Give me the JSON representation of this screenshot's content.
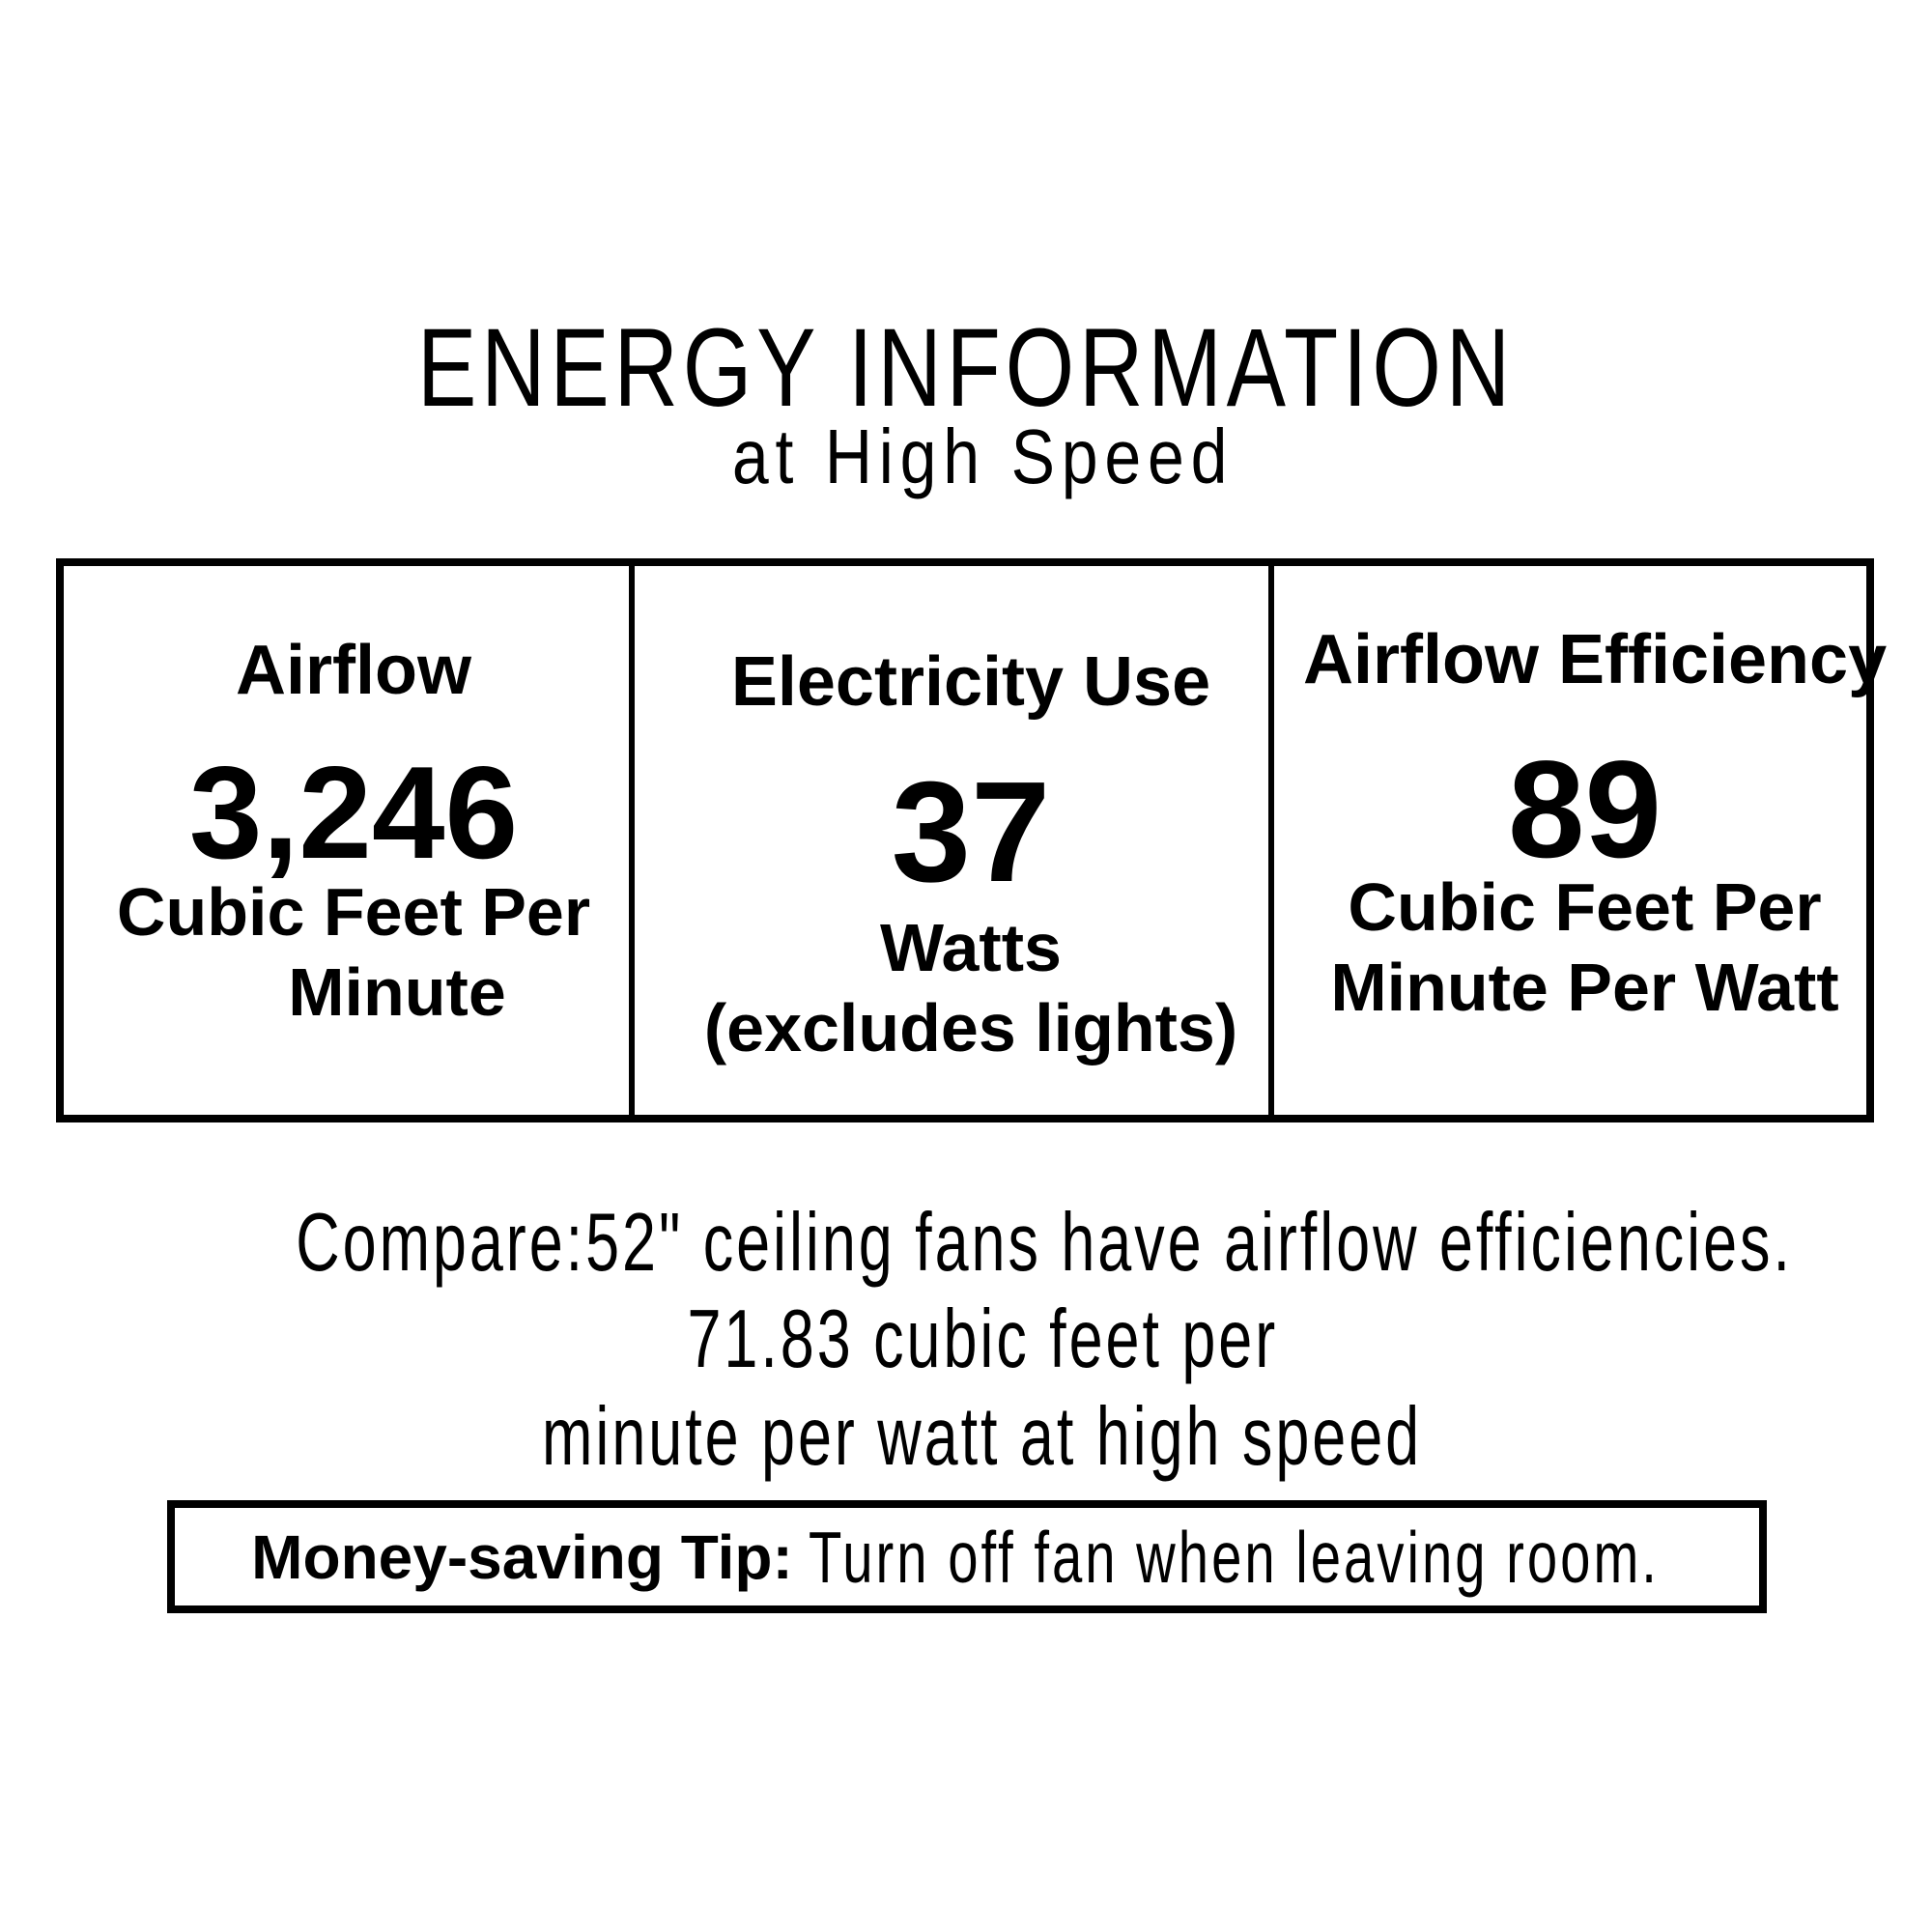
{
  "header": {
    "title": "ENERGY INFORMATION",
    "subtitle": "at High Speed"
  },
  "table": {
    "cells": [
      {
        "label": "Airflow",
        "value": "3,246",
        "unit_lines": [
          "Cubic Feet Per",
          "Minute"
        ]
      },
      {
        "label": "Electricity Use",
        "value": "37",
        "unit_lines": [
          "Watts",
          "(excludes lights)"
        ]
      },
      {
        "label": "Airflow Efficiency",
        "value": "89",
        "unit_lines": [
          "Cubic Feet Per",
          "Minute Per Watt"
        ]
      }
    ]
  },
  "compare": {
    "lines": [
      "Compare:52\" ceiling fans have airflow efficiencies.",
      "71.83 cubic feet per",
      "minute per watt at high speed"
    ]
  },
  "tip": {
    "label": "Money-saving Tip:",
    "text": "Turn off fan when leaving room."
  },
  "colors": {
    "ink": "#000000",
    "background": "#ffffff"
  }
}
